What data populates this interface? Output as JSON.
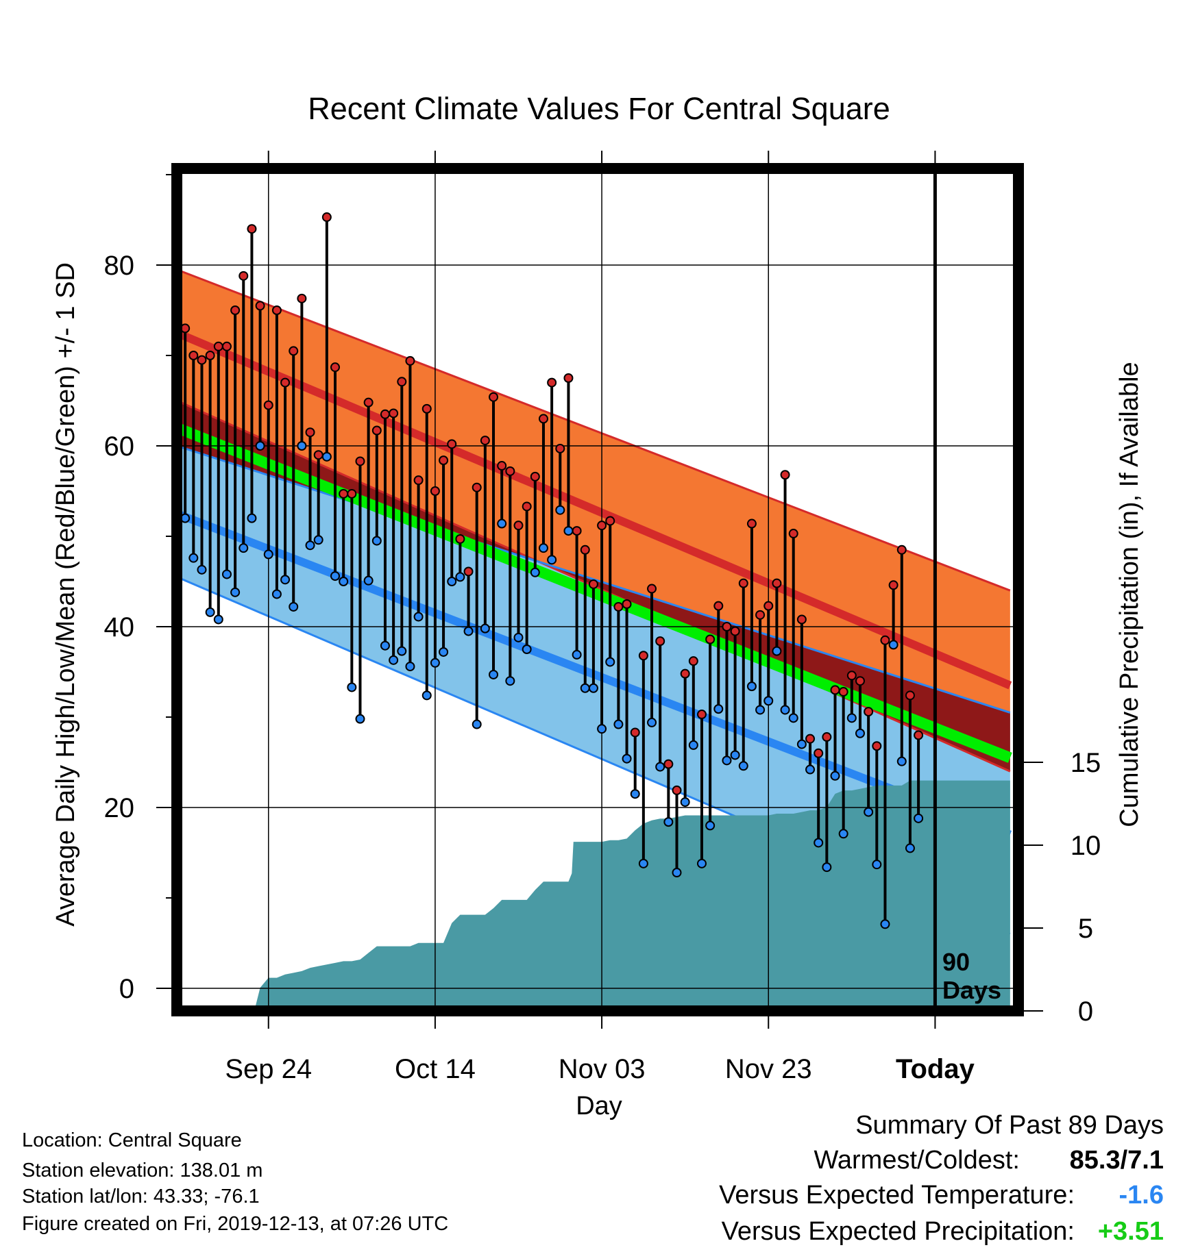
{
  "chart_data": {
    "type": "line",
    "title": "Recent Climate Values For Central Square",
    "xlabel": "Day",
    "ylabel": "Average Daily High/Low/Mean (Red/Blue/Green) +/- 1 SD",
    "y2label": "Cumulative Precipitation (in), If Available",
    "x_ticks": [
      "Sep 24",
      "Oct 14",
      "Nov 03",
      "Nov 23",
      "Today"
    ],
    "x_tick_days": [
      11,
      31,
      51,
      71,
      91
    ],
    "xlim": [
      0,
      101
    ],
    "ylim": [
      -3,
      90
    ],
    "y_ticks": [
      0,
      20,
      40,
      60,
      80
    ],
    "y2lim": [
      0,
      30
    ],
    "y2_ticks": [
      0,
      5,
      10,
      15
    ],
    "grid": true,
    "annotation": "90\nDays",
    "expected": {
      "high_mean": [
        [
          0,
          72.5
        ],
        [
          100,
          33.5
        ]
      ],
      "high_upper": [
        [
          0,
          79.5
        ],
        [
          100,
          44
        ]
      ],
      "high_lower": [
        [
          0,
          65
        ],
        [
          100,
          24
        ]
      ],
      "mid_mean": [
        [
          0,
          62
        ],
        [
          100,
          25.5
        ]
      ],
      "low_mean": [
        [
          0,
          52.5
        ],
        [
          100,
          17
        ]
      ],
      "low_upper": [
        [
          0,
          60
        ],
        [
          100,
          30.5
        ]
      ],
      "low_lower": [
        [
          0,
          45.5
        ],
        [
          100,
          6
        ]
      ]
    },
    "series": [
      {
        "name": "High",
        "values": [
          73,
          70,
          69.5,
          70,
          71,
          71,
          75,
          78.8,
          84,
          75.5,
          64.5,
          75,
          67,
          70.5,
          76.3,
          61.5,
          59,
          85.3,
          68.7,
          54.7,
          54.7,
          58.3,
          64.8,
          61.7,
          63.5,
          63.6,
          67.1,
          69.4,
          56.2,
          64.1,
          55,
          58.4,
          60.2,
          49.7,
          46.1,
          55.4,
          60.6,
          65.4,
          57.8,
          57.2,
          51.2,
          53.3,
          56.6,
          63,
          67,
          59.7,
          67.5,
          50.6,
          48.5,
          44.7,
          51.2,
          51.7,
          42.2,
          42.5,
          28.3,
          36.8,
          44.2,
          38.4,
          24.8,
          21.9,
          34.8,
          36.2,
          30.3,
          38.6,
          42.3,
          40,
          39.5,
          44.8,
          51.4,
          41.3,
          42.3,
          44.8,
          56.8,
          50.3,
          40.8,
          27.6,
          26,
          27.8,
          33,
          32.8,
          34.6,
          34,
          30.6,
          26.8,
          38.5,
          44.6,
          48.5,
          32.4,
          28
        ],
        "lows": [
          52,
          47.6,
          46.3,
          41.6,
          40.8,
          45.8,
          43.8,
          48.7,
          52,
          60,
          48,
          43.6,
          45.2,
          42.2,
          60,
          49,
          49.6,
          58.8,
          45.6,
          45,
          33.3,
          29.8,
          45.1,
          49.5,
          37.9,
          36.3,
          37.3,
          35.6,
          41.1,
          32.4,
          36,
          37.2,
          45,
          45.5,
          39.5,
          29.2,
          39.8,
          34.7,
          51.4,
          34,
          38.8,
          37.5,
          46,
          48.7,
          47.4,
          52.9,
          50.6,
          36.9,
          33.2,
          33.2,
          28.7,
          36.1,
          29.2,
          25.4,
          21.5,
          13.8,
          29.4,
          24.5,
          18.4,
          12.8,
          20.6,
          26.9,
          13.8,
          18,
          30.9,
          25.2,
          25.8,
          24.6,
          33.4,
          30.8,
          31.8,
          37.3,
          30.8,
          29.9,
          27,
          24.2,
          16.1,
          13.4,
          23.5,
          17.1,
          29.9,
          28.2,
          19.5,
          13.7,
          7.1,
          38,
          25.1,
          15.5,
          18.8
        ]
      }
    ],
    "precip_cumulative": [
      [
        0,
        0
      ],
      [
        9.3,
        0
      ],
      [
        10,
        1.4
      ],
      [
        11,
        2
      ],
      [
        12,
        2
      ],
      [
        13,
        2.2
      ],
      [
        14,
        2.3
      ],
      [
        15,
        2.4
      ],
      [
        16,
        2.6
      ],
      [
        17,
        2.7
      ],
      [
        18,
        2.8
      ],
      [
        19,
        2.9
      ],
      [
        20,
        3
      ],
      [
        21,
        3
      ],
      [
        22,
        3.1
      ],
      [
        23,
        3.5
      ],
      [
        24,
        3.9
      ],
      [
        25,
        3.9
      ],
      [
        26,
        3.9
      ],
      [
        27,
        3.9
      ],
      [
        28,
        3.9
      ],
      [
        29,
        4.1
      ],
      [
        30,
        4.1
      ],
      [
        31,
        4.1
      ],
      [
        32,
        4.1
      ],
      [
        33,
        5.3
      ],
      [
        34,
        5.8
      ],
      [
        35,
        5.8
      ],
      [
        36,
        5.8
      ],
      [
        37,
        5.8
      ],
      [
        38,
        6.2
      ],
      [
        39,
        6.7
      ],
      [
        40,
        6.7
      ],
      [
        41,
        6.7
      ],
      [
        42,
        6.7
      ],
      [
        43,
        7.3
      ],
      [
        44,
        7.8
      ],
      [
        45,
        7.8
      ],
      [
        46,
        7.8
      ],
      [
        47,
        7.8
      ],
      [
        47.4,
        8.3
      ],
      [
        47.6,
        10.2
      ],
      [
        48,
        10.2
      ],
      [
        49,
        10.2
      ],
      [
        50,
        10.2
      ],
      [
        51,
        10.2
      ],
      [
        52,
        10.3
      ],
      [
        53,
        10.3
      ],
      [
        54,
        10.4
      ],
      [
        55,
        10.9
      ],
      [
        56,
        11.3
      ],
      [
        57,
        11.5
      ],
      [
        58,
        11.6
      ],
      [
        59,
        11.6
      ],
      [
        60,
        11.7
      ],
      [
        61,
        11.8
      ],
      [
        62,
        11.8
      ],
      [
        63,
        11.8
      ],
      [
        64,
        11.8
      ],
      [
        65,
        11.8
      ],
      [
        66,
        11.8
      ],
      [
        67,
        11.8
      ],
      [
        68,
        11.8
      ],
      [
        69,
        11.8
      ],
      [
        70,
        11.8
      ],
      [
        71,
        11.8
      ],
      [
        72,
        11.9
      ],
      [
        73,
        11.9
      ],
      [
        74,
        11.9
      ],
      [
        75,
        12
      ],
      [
        76,
        12.1
      ],
      [
        77,
        12.1
      ],
      [
        78,
        12.3
      ],
      [
        79,
        13.1
      ],
      [
        80,
        13.3
      ],
      [
        81,
        13.3
      ],
      [
        82,
        13.4
      ],
      [
        83,
        13.5
      ],
      [
        84,
        13.6
      ],
      [
        85,
        13.6
      ],
      [
        86,
        13.6
      ],
      [
        87,
        13.6
      ],
      [
        88,
        13.9
      ],
      [
        89,
        13.9
      ],
      [
        90,
        13.9
      ],
      [
        91,
        13.9
      ],
      [
        100,
        13.9
      ]
    ]
  },
  "location": "Location: Central Square",
  "elevation": "Station elevation: 138.01 m",
  "latlon": "Station lat/lon: 43.33; -76.1",
  "created": "Figure created on Fri, 2019-12-13, at 07:26 UTC",
  "summary": {
    "title": "Summary Of Past 89 Days",
    "warmest_label": "Warmest/Coldest:",
    "warmest_value": "85.3/7.1",
    "temp_label": "Versus Expected Temperature:",
    "temp_value": "-1.6",
    "precip_label": "Versus Expected Precipitation:",
    "precip_value": "+3.51"
  },
  "colors": {
    "high_band": "#f47732",
    "high_line": "#d42a2a",
    "low_band": "#82c3ea",
    "low_line": "#2a86f2",
    "mid_line": "#00ee00",
    "dark_red": "#8e1818",
    "precip": "#4a9aa4",
    "temp_value": "#2a86f2",
    "precip_value": "#16cc16"
  }
}
